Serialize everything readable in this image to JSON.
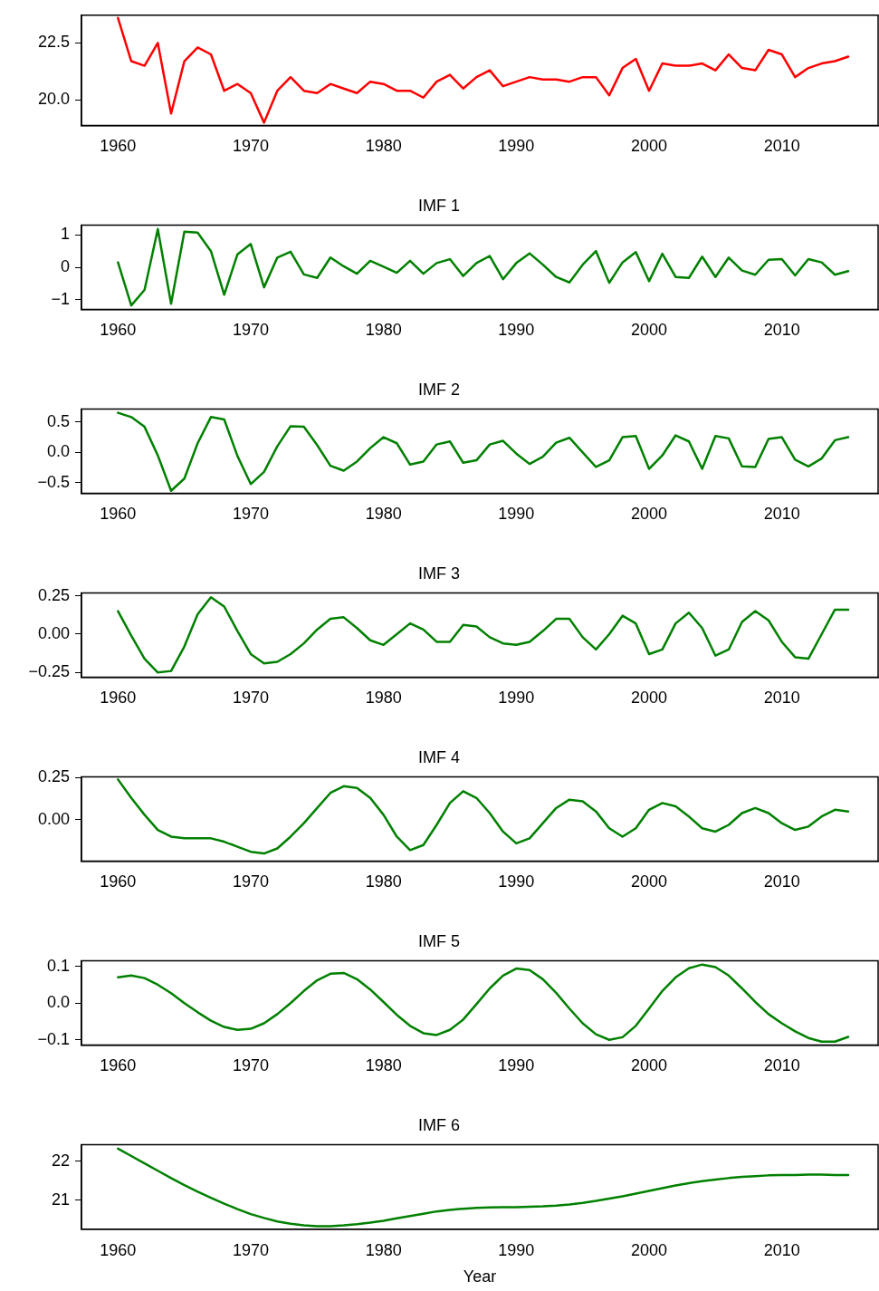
{
  "chart_data": [
    {
      "type": "line",
      "x": [
        1960,
        1961,
        1962,
        1963,
        1964,
        1965,
        1966,
        1967,
        1968,
        1969,
        1970,
        1971,
        1972,
        1973,
        1974,
        1975,
        1976,
        1977,
        1978,
        1979,
        1980,
        1981,
        1982,
        1983,
        1984,
        1985,
        1986,
        1987,
        1988,
        1989,
        1990,
        1991,
        1992,
        1993,
        1994,
        1995,
        1996,
        1997,
        1998,
        1999,
        2000,
        2001,
        2002,
        2003,
        2004,
        2005,
        2006,
        2007,
        2008,
        2009,
        2010,
        2011,
        2012,
        2013,
        2014,
        2015
      ],
      "xlim": [
        1957.25,
        2017.25
      ],
      "xticks": [
        1960,
        1970,
        1980,
        1990,
        2000,
        2010
      ],
      "ylim": [
        18.88,
        23.72
      ],
      "yticks": [
        {
          "value": 20,
          "label": "20.0"
        },
        22.5
      ],
      "grid": false,
      "series": [
        {
          "color": "#ff0000",
          "values": [
            23.6,
            21.7,
            21.5,
            22.5,
            19.4,
            21.7,
            22.3,
            22.0,
            20.4,
            20.7,
            20.3,
            19.0,
            20.4,
            21.0,
            20.4,
            20.3,
            20.7,
            20.5,
            20.3,
            20.8,
            20.7,
            20.4,
            20.4,
            20.1,
            20.8,
            21.1,
            20.5,
            21.0,
            21.3,
            20.6,
            20.8,
            21.0,
            20.9,
            20.9,
            20.8,
            21.0,
            21.0,
            20.2,
            21.4,
            21.8,
            20.4,
            21.6,
            21.5,
            21.5,
            21.6,
            21.3,
            22.0,
            21.4,
            21.3,
            22.2,
            22.0,
            21.0,
            21.4,
            21.6,
            21.7,
            21.9
          ]
        }
      ]
    },
    {
      "type": "line",
      "title": "IMF 1",
      "x": [
        1960,
        1961,
        1962,
        1963,
        1964,
        1965,
        1966,
        1967,
        1968,
        1969,
        1970,
        1971,
        1972,
        1973,
        1974,
        1975,
        1976,
        1977,
        1978,
        1979,
        1980,
        1981,
        1982,
        1983,
        1984,
        1985,
        1986,
        1987,
        1988,
        1989,
        1990,
        1991,
        1992,
        1993,
        1994,
        1995,
        1996,
        1997,
        1998,
        1999,
        2000,
        2001,
        2002,
        2003,
        2004,
        2005,
        2006,
        2007,
        2008,
        2009,
        2010,
        2011,
        2012,
        2013,
        2014,
        2015
      ],
      "xlim": [
        1957.25,
        2017.25
      ],
      "xticks": [
        1960,
        1970,
        1980,
        1990,
        2000,
        2010
      ],
      "ylim": [
        -1.3,
        1.3
      ],
      "yticks": [
        {
          "value": -1,
          "label": "−1"
        },
        0,
        1
      ],
      "grid": false,
      "series": [
        {
          "color": "#008000",
          "values": [
            0.15,
            -1.18,
            -0.7,
            1.18,
            -1.13,
            1.1,
            1.07,
            0.5,
            -0.85,
            0.4,
            0.72,
            -0.62,
            0.3,
            0.48,
            -0.22,
            -0.33,
            0.3,
            0.03,
            -0.2,
            0.2,
            0.02,
            -0.17,
            0.2,
            -0.2,
            0.13,
            0.25,
            -0.27,
            0.13,
            0.35,
            -0.37,
            0.13,
            0.43,
            0.08,
            -0.3,
            -0.47,
            0.08,
            0.5,
            -0.48,
            0.15,
            0.47,
            -0.43,
            0.42,
            -0.3,
            -0.33,
            0.33,
            -0.3,
            0.3,
            -0.1,
            -0.23,
            0.23,
            0.25,
            -0.25,
            0.25,
            0.15,
            -0.23,
            -0.12
          ]
        }
      ]
    },
    {
      "type": "line",
      "title": "IMF 2",
      "x": [
        1960,
        1961,
        1962,
        1963,
        1964,
        1965,
        1966,
        1967,
        1968,
        1969,
        1970,
        1971,
        1972,
        1973,
        1974,
        1975,
        1976,
        1977,
        1978,
        1979,
        1980,
        1981,
        1982,
        1983,
        1984,
        1985,
        1986,
        1987,
        1988,
        1989,
        1990,
        1991,
        1992,
        1993,
        1994,
        1995,
        1996,
        1997,
        1998,
        1999,
        2000,
        2001,
        2002,
        2003,
        2004,
        2005,
        2006,
        2007,
        2008,
        2009,
        2010,
        2011,
        2012,
        2013,
        2014,
        2015
      ],
      "xlim": [
        1957.25,
        2017.25
      ],
      "xticks": [
        1960,
        1970,
        1980,
        1990,
        2000,
        2010
      ],
      "ylim": [
        -0.67,
        0.71
      ],
      "yticks": [
        {
          "value": -0.5,
          "label": "−0.5"
        },
        {
          "value": 0,
          "label": "0.0"
        },
        0.5
      ],
      "grid": false,
      "series": [
        {
          "color": "#008000",
          "values": [
            0.65,
            0.58,
            0.42,
            -0.05,
            -0.63,
            -0.43,
            0.15,
            0.58,
            0.54,
            -0.06,
            -0.52,
            -0.32,
            0.1,
            0.43,
            0.42,
            0.12,
            -0.22,
            -0.3,
            -0.15,
            0.07,
            0.25,
            0.15,
            -0.2,
            -0.15,
            0.13,
            0.18,
            -0.17,
            -0.13,
            0.13,
            0.19,
            -0.02,
            -0.19,
            -0.07,
            0.16,
            0.24,
            0.0,
            -0.24,
            -0.13,
            0.25,
            0.27,
            -0.27,
            -0.05,
            0.28,
            0.18,
            -0.27,
            0.27,
            0.23,
            -0.23,
            -0.24,
            0.22,
            0.25,
            -0.12,
            -0.23,
            -0.1,
            0.2,
            0.25
          ]
        }
      ]
    },
    {
      "type": "line",
      "title": "IMF 3",
      "x": [
        1960,
        1961,
        1962,
        1963,
        1964,
        1965,
        1966,
        1967,
        1968,
        1969,
        1970,
        1971,
        1972,
        1973,
        1974,
        1975,
        1976,
        1977,
        1978,
        1979,
        1980,
        1981,
        1982,
        1983,
        1984,
        1985,
        1986,
        1987,
        1988,
        1989,
        1990,
        1991,
        1992,
        1993,
        1994,
        1995,
        1996,
        1997,
        1998,
        1999,
        2000,
        2001,
        2002,
        2003,
        2004,
        2005,
        2006,
        2007,
        2008,
        2009,
        2010,
        2011,
        2012,
        2013,
        2014,
        2015
      ],
      "xlim": [
        1957.25,
        2017.25
      ],
      "xticks": [
        1960,
        1970,
        1980,
        1990,
        2000,
        2010
      ],
      "ylim": [
        -0.28,
        0.268
      ],
      "yticks": [
        {
          "value": -0.25,
          "label": "−0.25"
        },
        {
          "value": 0,
          "label": "0.00"
        },
        0.25
      ],
      "grid": false,
      "series": [
        {
          "color": "#008000",
          "values": [
            0.15,
            -0.01,
            -0.16,
            -0.25,
            -0.24,
            -0.08,
            0.13,
            0.24,
            0.18,
            0.02,
            -0.13,
            -0.19,
            -0.18,
            -0.13,
            -0.06,
            0.03,
            0.1,
            0.11,
            0.04,
            -0.04,
            -0.07,
            0.0,
            0.07,
            0.03,
            -0.05,
            -0.05,
            0.06,
            0.05,
            -0.02,
            -0.06,
            -0.07,
            -0.05,
            0.02,
            0.1,
            0.1,
            -0.02,
            -0.1,
            0.0,
            0.12,
            0.07,
            -0.13,
            -0.1,
            0.07,
            0.14,
            0.04,
            -0.14,
            -0.1,
            0.08,
            0.15,
            0.09,
            -0.05,
            -0.15,
            -0.16,
            0.0,
            0.16,
            0.16
          ]
        }
      ]
    },
    {
      "type": "line",
      "title": "IMF 4",
      "x": [
        1960,
        1961,
        1962,
        1963,
        1964,
        1965,
        1966,
        1967,
        1968,
        1969,
        1970,
        1971,
        1972,
        1973,
        1974,
        1975,
        1976,
        1977,
        1978,
        1979,
        1980,
        1981,
        1982,
        1983,
        1984,
        1985,
        1986,
        1987,
        1988,
        1989,
        1990,
        1991,
        1992,
        1993,
        1994,
        1995,
        1996,
        1997,
        1998,
        1999,
        2000,
        2001,
        2002,
        2003,
        2004,
        2005,
        2006,
        2007,
        2008,
        2009,
        2010,
        2011,
        2012,
        2013,
        2014,
        2015
      ],
      "xlim": [
        1957.25,
        2017.25
      ],
      "xticks": [
        1960,
        1970,
        1980,
        1990,
        2000,
        2010
      ],
      "ylim": [
        -0.245,
        0.255
      ],
      "yticks": [
        {
          "value": 0,
          "label": "0.00"
        },
        0.25
      ],
      "grid": false,
      "series": [
        {
          "color": "#008000",
          "values": [
            0.24,
            0.13,
            0.03,
            -0.06,
            -0.1,
            -0.11,
            -0.11,
            -0.11,
            -0.13,
            -0.16,
            -0.19,
            -0.2,
            -0.17,
            -0.1,
            -0.02,
            0.07,
            0.16,
            0.2,
            0.19,
            0.13,
            0.03,
            -0.1,
            -0.18,
            -0.15,
            -0.03,
            0.1,
            0.17,
            0.13,
            0.04,
            -0.07,
            -0.14,
            -0.11,
            -0.02,
            0.07,
            0.12,
            0.11,
            0.05,
            -0.05,
            -0.1,
            -0.05,
            0.06,
            0.1,
            0.08,
            0.02,
            -0.05,
            -0.07,
            -0.03,
            0.04,
            0.07,
            0.04,
            -0.02,
            -0.06,
            -0.04,
            0.02,
            0.06,
            0.05
          ]
        }
      ]
    },
    {
      "type": "line",
      "title": "IMF 5",
      "x": [
        1960,
        1961,
        1962,
        1963,
        1964,
        1965,
        1966,
        1967,
        1968,
        1969,
        1970,
        1971,
        1972,
        1973,
        1974,
        1975,
        1976,
        1977,
        1978,
        1979,
        1980,
        1981,
        1982,
        1983,
        1984,
        1985,
        1986,
        1987,
        1988,
        1989,
        1990,
        1991,
        1992,
        1993,
        1994,
        1995,
        1996,
        1997,
        1998,
        1999,
        2000,
        2001,
        2002,
        2003,
        2004,
        2005,
        2006,
        2007,
        2008,
        2009,
        2010,
        2011,
        2012,
        2013,
        2014,
        2015
      ],
      "xlim": [
        1957.25,
        2017.25
      ],
      "xticks": [
        1960,
        1970,
        1980,
        1990,
        2000,
        2010
      ],
      "ylim": [
        -0.114,
        0.115
      ],
      "yticks": [
        {
          "value": -0.1,
          "label": "−0.1"
        },
        {
          "value": 0,
          "label": "0.0"
        },
        0.1
      ],
      "grid": false,
      "series": [
        {
          "color": "#008000",
          "values": [
            0.07,
            0.075,
            0.068,
            0.05,
            0.027,
            0.0,
            -0.025,
            -0.048,
            -0.065,
            -0.073,
            -0.07,
            -0.055,
            -0.03,
            0.0,
            0.033,
            0.062,
            0.08,
            0.082,
            0.065,
            0.037,
            0.003,
            -0.032,
            -0.062,
            -0.082,
            -0.087,
            -0.073,
            -0.045,
            -0.003,
            0.04,
            0.075,
            0.094,
            0.09,
            0.065,
            0.028,
            -0.015,
            -0.055,
            -0.085,
            -0.1,
            -0.093,
            -0.062,
            -0.015,
            0.033,
            0.07,
            0.095,
            0.105,
            0.098,
            0.075,
            0.04,
            0.003,
            -0.03,
            -0.055,
            -0.077,
            -0.095,
            -0.105,
            -0.105,
            -0.092
          ]
        }
      ]
    },
    {
      "type": "line",
      "title": "IMF 6",
      "xlabel": "Year",
      "x": [
        1960,
        1961,
        1962,
        1963,
        1964,
        1965,
        1966,
        1967,
        1968,
        1969,
        1970,
        1971,
        1972,
        1973,
        1974,
        1975,
        1976,
        1977,
        1978,
        1979,
        1980,
        1981,
        1982,
        1983,
        1984,
        1985,
        1986,
        1987,
        1988,
        1989,
        1990,
        1991,
        1992,
        1993,
        1994,
        1995,
        1996,
        1997,
        1998,
        1999,
        2000,
        2001,
        2002,
        2003,
        2004,
        2005,
        2006,
        2007,
        2008,
        2009,
        2010,
        2011,
        2012,
        2013,
        2014,
        2015
      ],
      "xlim": [
        1957.25,
        2017.25
      ],
      "xticks": [
        1960,
        1970,
        1980,
        1990,
        2000,
        2010
      ],
      "ylim": [
        20.25,
        22.43
      ],
      "yticks": [
        21,
        22
      ],
      "grid": false,
      "series": [
        {
          "color": "#008000",
          "values": [
            22.33,
            22.14,
            21.95,
            21.76,
            21.57,
            21.39,
            21.22,
            21.06,
            20.91,
            20.77,
            20.64,
            20.54,
            20.45,
            20.39,
            20.35,
            20.33,
            20.33,
            20.35,
            20.38,
            20.42,
            20.47,
            20.53,
            20.59,
            20.65,
            20.71,
            20.75,
            20.78,
            20.8,
            20.81,
            20.82,
            20.82,
            20.83,
            20.84,
            20.86,
            20.89,
            20.93,
            20.98,
            21.04,
            21.1,
            21.17,
            21.24,
            21.31,
            21.38,
            21.44,
            21.49,
            21.53,
            21.57,
            21.6,
            21.62,
            21.64,
            21.65,
            21.65,
            21.66,
            21.66,
            21.65,
            21.65
          ]
        }
      ]
    }
  ]
}
